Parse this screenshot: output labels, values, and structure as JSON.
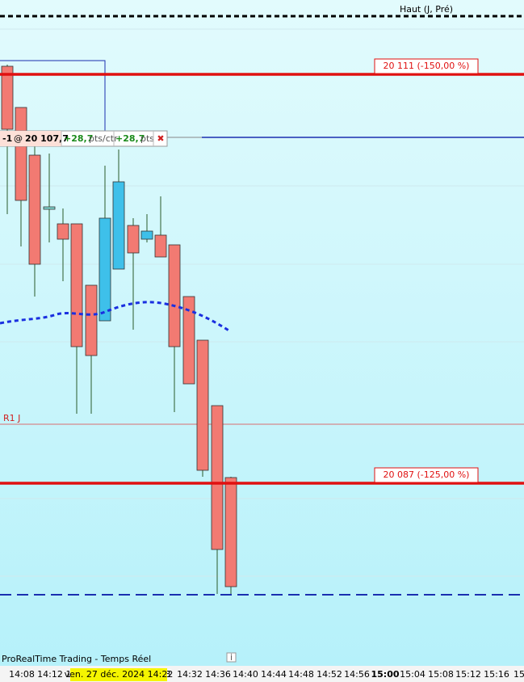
{
  "top_line": {
    "label": "Haut (J, Pré)"
  },
  "levels": [
    {
      "label": "20 111 (-150,00 %)"
    },
    {
      "label": "20 087 (-125,00 %)"
    }
  ],
  "order": {
    "qty": "-1",
    "at": "@",
    "price": "20 107,7",
    "pnl_ctr": "+28,7",
    "unit_ctr": "pts/ctr",
    "pnl": "+28,7",
    "unit": "pts"
  },
  "pivot": {
    "label": "R1 J"
  },
  "footer": {
    "source": "ProRealTime Trading - Temps Réel"
  },
  "time_axis": {
    "labels": [
      "14:08",
      "14:12",
      "1",
      "8",
      "14:32",
      "14:36",
      "14:40",
      "14:44",
      "14:48",
      "14:52",
      "14:56",
      "15:00",
      "15:04",
      "15:08",
      "15:12",
      "15:16",
      "15"
    ],
    "highlight": "ven. 27 déc. 2024 14:22"
  }
}
